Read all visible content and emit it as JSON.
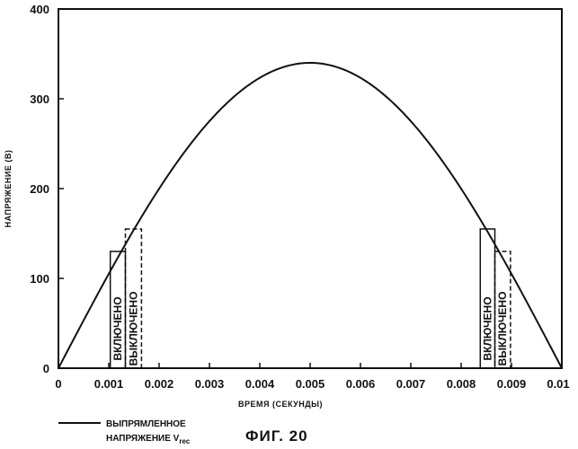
{
  "chart_data": {
    "type": "line",
    "title": "",
    "xlabel": "ВРЕМЯ (СЕКУНДЫ)",
    "ylabel": "НАПРЯЖЕНИЕ (В)",
    "xlim": [
      0,
      0.01
    ],
    "ylim": [
      0,
      400
    ],
    "x_ticks": [
      0,
      0.001,
      0.002,
      0.003,
      0.004,
      0.005,
      0.006,
      0.007,
      0.008,
      0.009,
      0.01
    ],
    "x_tick_labels": [
      "0",
      "0.001",
      "0.002",
      "0.003",
      "0.004",
      "0.005",
      "0.006",
      "0.007",
      "0.008",
      "0.009",
      "0.01"
    ],
    "y_ticks": [
      0,
      100,
      200,
      300,
      400
    ],
    "y_tick_labels": [
      "0",
      "100",
      "200",
      "300",
      "400"
    ],
    "series": [
      {
        "name": "ВЫПРЯМЛЕННОЕ НАПРЯЖЕНИЕ V_rec",
        "function": "peak*sin(pi*t/0.01)",
        "peak": 340
      }
    ],
    "pulses": [
      {
        "label": "ВКЛЮЧЕНО",
        "style": "solid",
        "x_start": 0.00103,
        "x_end": 0.00133,
        "top": 130
      },
      {
        "label": "ВЫКЛЮЧЕНО",
        "style": "dashed",
        "x_start": 0.00133,
        "x_end": 0.00165,
        "top": 155
      },
      {
        "label": "ВКЛЮЧЕНО",
        "style": "solid",
        "x_start": 0.00838,
        "x_end": 0.00867,
        "top": 155
      },
      {
        "label": "ВЫКЛЮЧЕНО",
        "style": "dashed",
        "x_start": 0.00867,
        "x_end": 0.00898,
        "top": 130
      }
    ],
    "legend": {
      "line1": "ВЫПРЯМЛЕННОЕ",
      "line2_prefix": "НАПРЯЖЕНИЕ V",
      "line2_subscript": "rec",
      "placement": "bottom-left"
    }
  },
  "figure_label": "ФИГ. 20"
}
